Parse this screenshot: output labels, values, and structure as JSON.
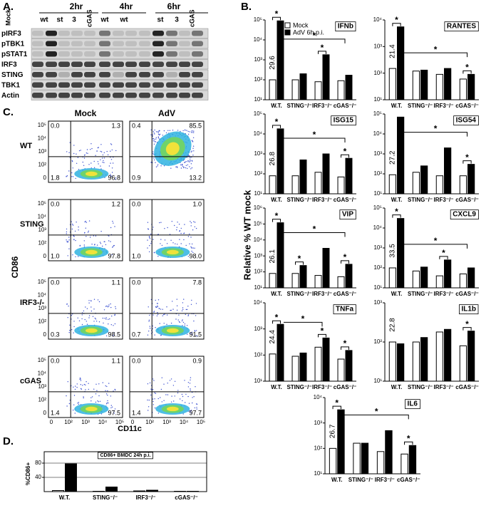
{
  "panel_labels": {
    "a": "A.",
    "b": "B.",
    "c": "C.",
    "d": "D."
  },
  "panel_a": {
    "times": [
      "2hr",
      "4hr",
      "6hr"
    ],
    "lanes": [
      "Mock",
      "wt",
      "st",
      "3",
      "cGAS",
      "wt",
      "wt",
      "st",
      "3",
      "cGAS"
    ],
    "rows": [
      "pIRF3",
      "pTBK1",
      "pSTAT1",
      "IRF3",
      "STING",
      "TBK1",
      "Actin"
    ]
  },
  "panel_b": {
    "ylabel": "Relative % WT mock"
  },
  "panel_c": {
    "columns": [
      "Mock",
      "AdV"
    ],
    "rows": [
      "WT",
      "STING",
      "IRF3-/-",
      "cGAS"
    ],
    "ylabel": "CD86",
    "xlabel": "CD11c",
    "yticks": [
      "10⁵",
      "10⁴",
      "10³",
      "10²",
      "0"
    ],
    "xticks": [
      "0",
      "10²",
      "10³",
      "10⁴",
      "10⁵"
    ],
    "plots": [
      [
        {
          "ul": "0.0",
          "ur": "1.3",
          "ll": "1.8",
          "lr": "96.8"
        },
        {
          "ul": "0.4",
          "ur": "85.5",
          "ll": "0.9",
          "lr": "13.2"
        }
      ],
      [
        {
          "ul": "0.0",
          "ur": "1.2",
          "ll": "1.0",
          "lr": "97.8"
        },
        {
          "ul": "0.0",
          "ur": "1.0",
          "ll": "1.0",
          "lr": "98.0"
        }
      ],
      [
        {
          "ul": "0.0",
          "ur": "1.1",
          "ll": "0.3",
          "lr": "98.5"
        },
        {
          "ul": "0.0",
          "ur": "7.8",
          "ll": "0.7",
          "lr": "91.5"
        }
      ],
      [
        {
          "ul": "0.0",
          "ur": "1.1",
          "ll": "1.4",
          "lr": "97.5"
        },
        {
          "ul": "0.0",
          "ur": "0.9",
          "ll": "1.4",
          "lr": "97.7"
        }
      ]
    ]
  },
  "chart_data": [
    {
      "type": "bar",
      "title": "IFNb",
      "log_scale": true,
      "legend": "top-left",
      "annotation": "29.6",
      "categories": [
        "W.T.",
        "STING⁻/⁻",
        "IRF3⁻/⁻",
        "cGAS⁻/⁻"
      ],
      "series": [
        {
          "name": "Mock",
          "color": "#ffffff",
          "values": [
            100,
            100,
            80,
            90
          ]
        },
        {
          "name": "AdV 6h p.i.",
          "color": "#000000",
          "values": [
            90000,
            200,
            1800,
            170
          ]
        }
      ],
      "ylim": [
        10,
        100000
      ],
      "yticks": [
        {
          "value": 10,
          "label": "10¹"
        },
        {
          "value": 100,
          "label": "10²"
        },
        {
          "value": 1000,
          "label": "10³"
        },
        {
          "value": 10000,
          "label": "10⁴"
        },
        {
          "value": 100000,
          "label": "10⁵"
        }
      ],
      "brackets": [
        {
          "text": "*",
          "between": [
            "W.T."
          ]
        },
        {
          "text": "*",
          "between": [
            "W.T.",
            "cGAS⁻/⁻"
          ]
        },
        {
          "text": "*",
          "between": [
            "IRF3⁻/⁻"
          ]
        }
      ]
    },
    {
      "type": "bar",
      "title": "RANTES",
      "log_scale": true,
      "annotation": "21.4",
      "categories": [
        "W.T.",
        "STING⁻/⁻",
        "IRF3⁻/⁻",
        "cGAS⁻/⁻"
      ],
      "series": [
        {
          "name": "Mock",
          "color": "#ffffff",
          "values": [
            150,
            120,
            90,
            60
          ]
        },
        {
          "name": "AdV 6h p.i.",
          "color": "#000000",
          "values": [
            5500,
            130,
            150,
            90
          ]
        }
      ],
      "ylim": [
        10,
        10000
      ],
      "yticks": [
        {
          "value": 10,
          "label": "10¹"
        },
        {
          "value": 100,
          "label": "10²"
        },
        {
          "value": 1000,
          "label": "10³"
        },
        {
          "value": 10000,
          "label": "10⁴"
        }
      ],
      "brackets": [
        {
          "text": "*",
          "between": [
            "W.T."
          ]
        },
        {
          "text": "*",
          "between": [
            "W.T.",
            "cGAS⁻/⁻"
          ]
        },
        {
          "text": "*",
          "between": [
            "cGAS⁻/⁻"
          ]
        }
      ]
    },
    {
      "type": "bar",
      "title": "ISG15",
      "log_scale": true,
      "annotation": "26.8",
      "categories": [
        "W.T.",
        "STING⁻/⁻",
        "IRF3⁻/⁻",
        "cGAS⁻/⁻"
      ],
      "series": [
        {
          "name": "Mock",
          "color": "#ffffff",
          "values": [
            80,
            80,
            120,
            70
          ]
        },
        {
          "name": "AdV 6h p.i.",
          "color": "#000000",
          "values": [
            18000,
            500,
            1000,
            600
          ]
        }
      ],
      "ylim": [
        10,
        100000
      ],
      "yticks": [
        {
          "value": 10,
          "label": "10¹"
        },
        {
          "value": 100,
          "label": "10²"
        },
        {
          "value": 1000,
          "label": "10³"
        },
        {
          "value": 10000,
          "label": "10⁴"
        },
        {
          "value": 100000,
          "label": "10⁵"
        }
      ],
      "brackets": [
        {
          "text": "*",
          "between": [
            "W.T."
          ]
        },
        {
          "text": "*",
          "between": [
            "W.T.",
            "cGAS⁻/⁻"
          ]
        },
        {
          "text": "*",
          "between": [
            "cGAS⁻/⁻"
          ]
        }
      ]
    },
    {
      "type": "bar",
      "title": "ISG54",
      "log_scale": true,
      "annotation": "27.2",
      "categories": [
        "W.T.",
        "STING⁻/⁻",
        "IRF3⁻/⁻",
        "cGAS⁻/⁻"
      ],
      "series": [
        {
          "name": "Mock",
          "color": "#ffffff",
          "values": [
            90,
            120,
            80,
            80
          ]
        },
        {
          "name": "AdV 6h p.i.",
          "color": "#000000",
          "values": [
            70000,
            250,
            2000,
            300
          ]
        }
      ],
      "ylim": [
        10,
        100000
      ],
      "yticks": [
        {
          "value": 10,
          "label": "10¹"
        },
        {
          "value": 100,
          "label": "10²"
        },
        {
          "value": 1000,
          "label": "10³"
        },
        {
          "value": 10000,
          "label": "10⁴"
        },
        {
          "value": 100000,
          "label": "10⁵"
        }
      ],
      "brackets": [
        {
          "text": "*",
          "between": [
            "W.T.",
            "cGAS⁻/⁻"
          ]
        },
        {
          "text": "*",
          "between": [
            "cGAS⁻/⁻"
          ]
        }
      ]
    },
    {
      "type": "bar",
      "title": "VIP",
      "log_scale": true,
      "annotation": "26.1",
      "categories": [
        "W.T.",
        "STING⁻/⁻",
        "IRF3⁻/⁻",
        "cGAS⁻/⁻"
      ],
      "series": [
        {
          "name": "Mock",
          "color": "#ffffff",
          "values": [
            80,
            80,
            60,
            50
          ]
        },
        {
          "name": "AdV 6h p.i.",
          "color": "#000000",
          "values": [
            120000,
            250,
            3000,
            300
          ]
        }
      ],
      "ylim": [
        10,
        1000000
      ],
      "yticks": [
        {
          "value": 10,
          "label": "10¹"
        },
        {
          "value": 100,
          "label": "10²"
        },
        {
          "value": 1000,
          "label": "10³"
        },
        {
          "value": 10000,
          "label": "10⁴"
        },
        {
          "value": 100000,
          "label": "10⁵"
        },
        {
          "value": 1000000,
          "label": "10⁶"
        }
      ],
      "brackets": [
        {
          "text": "*",
          "between": [
            "W.T."
          ]
        },
        {
          "text": "*",
          "between": [
            "W.T.",
            "cGAS⁻/⁻"
          ]
        },
        {
          "text": "*",
          "between": [
            "STING⁻/⁻"
          ]
        },
        {
          "text": "*",
          "between": [
            "cGAS⁻/⁻"
          ]
        }
      ]
    },
    {
      "type": "bar",
      "title": "CXCL9",
      "log_scale": true,
      "annotation": "33.5",
      "categories": [
        "W.T.",
        "STING⁻/⁻",
        "IRF3⁻/⁻",
        "cGAS⁻/⁻"
      ],
      "series": [
        {
          "name": "Mock",
          "color": "#ffffff",
          "values": [
            100,
            70,
            40,
            50
          ]
        },
        {
          "name": "AdV 6h p.i.",
          "color": "#000000",
          "values": [
            30000,
            110,
            250,
            100
          ]
        }
      ],
      "ylim": [
        10,
        100000
      ],
      "yticks": [
        {
          "value": 10,
          "label": "10¹"
        },
        {
          "value": 100,
          "label": "10²"
        },
        {
          "value": 1000,
          "label": "10³"
        },
        {
          "value": 10000,
          "label": "10⁴"
        },
        {
          "value": 100000,
          "label": "10⁵"
        }
      ],
      "brackets": [
        {
          "text": "*",
          "between": [
            "W.T."
          ]
        },
        {
          "text": "*",
          "between": [
            "W.T.",
            "cGAS⁻/⁻"
          ]
        },
        {
          "text": "*",
          "between": [
            "IRF3⁻/⁻"
          ]
        }
      ]
    },
    {
      "type": "bar",
      "title": "TNFa",
      "log_scale": true,
      "annotation": "24.4",
      "categories": [
        "W.T.",
        "STING⁻/⁻",
        "IRF3⁻/⁻",
        "cGAS⁻/⁻"
      ],
      "series": [
        {
          "name": "Mock",
          "color": "#ffffff",
          "values": [
            110,
            90,
            200,
            70
          ]
        },
        {
          "name": "AdV 6h p.i.",
          "color": "#000000",
          "values": [
            1500,
            120,
            450,
            150
          ]
        }
      ],
      "ylim": [
        10,
        10000
      ],
      "yticks": [
        {
          "value": 10,
          "label": "10¹"
        },
        {
          "value": 100,
          "label": "10²"
        },
        {
          "value": 1000,
          "label": "10³"
        },
        {
          "value": 10000,
          "label": "10⁴"
        }
      ],
      "brackets": [
        {
          "text": "*",
          "between": [
            "W.T."
          ]
        },
        {
          "text": "*",
          "between": [
            "W.T.",
            "IRF3⁻/⁻"
          ]
        },
        {
          "text": "*",
          "between": [
            "IRF3⁻/⁻"
          ]
        },
        {
          "text": "*",
          "between": [
            "cGAS⁻/⁻"
          ]
        }
      ]
    },
    {
      "type": "bar",
      "title": "IL1b",
      "log_scale": true,
      "annotation": "22.8",
      "categories": [
        "W.T.",
        "STING⁻/⁻",
        "IRF3⁻/⁻",
        "cGAS⁻/⁻"
      ],
      "series": [
        {
          "name": "Mock",
          "color": "#ffffff",
          "values": [
            100,
            100,
            180,
            80
          ]
        },
        {
          "name": "AdV 6h p.i.",
          "color": "#000000",
          "values": [
            90,
            130,
            210,
            190
          ]
        }
      ],
      "ylim": [
        10,
        1000
      ],
      "yticks": [
        {
          "value": 10,
          "label": "10¹"
        },
        {
          "value": 100,
          "label": "10²"
        },
        {
          "value": 1000,
          "label": "10³"
        }
      ],
      "brackets": [
        {
          "text": "*",
          "between": [
            "cGAS⁻/⁻"
          ]
        }
      ]
    },
    {
      "type": "bar",
      "title": "IL6",
      "log_scale": true,
      "annotation": "26.7",
      "categories": [
        "W.T.",
        "STING⁻/⁻",
        "IRF3⁻/⁻",
        "cGAS⁻/⁻"
      ],
      "series": [
        {
          "name": "Mock",
          "color": "#ffffff",
          "values": [
            100,
            160,
            75,
            60
          ]
        },
        {
          "name": "AdV 6h p.i.",
          "color": "#000000",
          "values": [
            3300,
            160,
            500,
            130
          ]
        }
      ],
      "ylim": [
        10,
        10000
      ],
      "yticks": [
        {
          "value": 10,
          "label": "10¹"
        },
        {
          "value": 100,
          "label": "10²"
        },
        {
          "value": 1000,
          "label": "10³"
        },
        {
          "value": 10000,
          "label": "10⁴"
        }
      ],
      "brackets": [
        {
          "text": "*",
          "between": [
            "W.T."
          ]
        },
        {
          "text": "*",
          "between": [
            "W.T.",
            "cGAS⁻/⁻"
          ]
        },
        {
          "text": "*",
          "between": [
            "cGAS⁻/⁻"
          ]
        }
      ]
    },
    {
      "type": "bar",
      "title": "CD86+ BMDC 24h p.i.",
      "ylabel": "%CD86+",
      "log_scale": false,
      "grid": true,
      "categories": [
        "W.T.",
        "STING⁻/⁻",
        "IRF3⁻/⁻",
        "cGAS⁻/⁻"
      ],
      "series": [
        {
          "name": "Mock",
          "color": "#ffffff",
          "values": [
            3,
            1,
            2,
            1
          ]
        },
        {
          "name": "AdV 6h p.i.",
          "color": "#000000",
          "values": [
            78,
            13,
            4,
            1
          ]
        }
      ],
      "ylim": [
        0,
        100
      ],
      "yticks": [
        40,
        80
      ]
    }
  ]
}
